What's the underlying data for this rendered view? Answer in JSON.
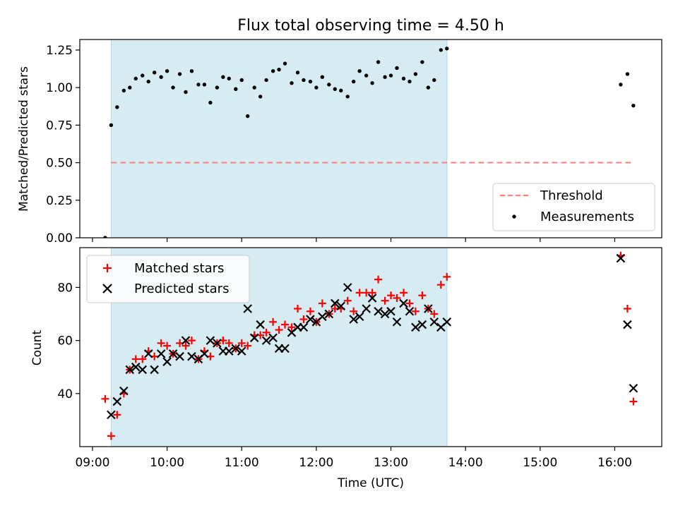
{
  "figure": {
    "title": "Flux total observing time = 4.50 h",
    "xlabel": "Time (UTC)",
    "x_ticks": [
      "09:00",
      "10:00",
      "11:00",
      "12:00",
      "13:00",
      "14:00",
      "15:00",
      "16:00"
    ],
    "x_tick_hours": [
      9,
      10,
      11,
      12,
      13,
      14,
      15,
      16
    ],
    "xlim_hours": [
      8.83,
      16.63
    ]
  },
  "colors": {
    "shade": "#add8e6",
    "threshold": "#ff7f7f",
    "measurement": "#000000",
    "matched": "#ff0000",
    "predicted": "#000000"
  },
  "chart_data": [
    {
      "type": "scatter",
      "ylabel": "Matched/Predicted stars",
      "ylim": [
        0,
        1.32
      ],
      "y_ticks": [
        0.0,
        0.25,
        0.5,
        0.75,
        1.0,
        1.25
      ],
      "y_tick_labels": [
        "0.00",
        "0.25",
        "0.50",
        "0.75",
        "1.00",
        "1.25"
      ],
      "legend": {
        "position": "lower-right",
        "entries": [
          "Threshold",
          "Measurements"
        ]
      },
      "shaded_span_hours": [
        9.25,
        13.75
      ],
      "threshold": {
        "name": "Threshold",
        "y": 0.5,
        "x_range_hours": [
          9.25,
          16.25
        ],
        "style": "dashed"
      },
      "series": [
        {
          "name": "Measurements",
          "x_hours": [
            9.17,
            9.25,
            9.33,
            9.42,
            9.5,
            9.58,
            9.67,
            9.75,
            9.83,
            9.92,
            10.0,
            10.08,
            10.17,
            10.25,
            10.33,
            10.42,
            10.5,
            10.58,
            10.67,
            10.75,
            10.83,
            10.92,
            11.0,
            11.08,
            11.17,
            11.25,
            11.33,
            11.42,
            11.5,
            11.58,
            11.67,
            11.75,
            11.83,
            11.92,
            12.0,
            12.08,
            12.17,
            12.25,
            12.33,
            12.42,
            12.5,
            12.58,
            12.67,
            12.75,
            12.83,
            12.92,
            13.0,
            13.08,
            13.17,
            13.25,
            13.33,
            13.42,
            13.5,
            13.58,
            13.67,
            13.75,
            16.08,
            16.17,
            16.25
          ],
          "y": [
            0.0,
            0.75,
            0.87,
            0.98,
            1.0,
            1.06,
            1.08,
            1.04,
            1.1,
            1.07,
            1.11,
            1.0,
            1.09,
            0.97,
            1.11,
            1.02,
            1.02,
            0.9,
            1.0,
            1.07,
            1.06,
            0.99,
            1.05,
            0.81,
            1.0,
            0.94,
            1.05,
            1.11,
            1.12,
            1.16,
            1.03,
            1.1,
            1.05,
            1.04,
            1.0,
            1.07,
            1.02,
            0.99,
            0.98,
            0.94,
            1.04,
            1.11,
            1.08,
            1.03,
            1.17,
            1.07,
            1.08,
            1.13,
            1.06,
            1.04,
            1.09,
            1.17,
            1.0,
            1.05,
            1.25,
            1.26,
            1.02,
            1.09,
            0.88
          ]
        }
      ]
    },
    {
      "type": "scatter",
      "ylabel": "Count",
      "ylim": [
        20,
        95
      ],
      "y_ticks": [
        40,
        60,
        80
      ],
      "y_tick_labels": [
        "40",
        "60",
        "80"
      ],
      "legend": {
        "position": "upper-left",
        "entries": [
          "Matched stars",
          "Predicted stars"
        ]
      },
      "shaded_span_hours": [
        9.25,
        13.75
      ],
      "series": [
        {
          "name": "Matched stars",
          "marker": "plus",
          "x_hours": [
            9.17,
            9.25,
            9.33,
            9.42,
            9.5,
            9.58,
            9.67,
            9.75,
            9.83,
            9.92,
            10.0,
            10.08,
            10.17,
            10.25,
            10.33,
            10.42,
            10.5,
            10.58,
            10.67,
            10.75,
            10.83,
            10.92,
            11.0,
            11.08,
            11.17,
            11.25,
            11.33,
            11.42,
            11.5,
            11.58,
            11.67,
            11.75,
            11.83,
            11.92,
            12.0,
            12.08,
            12.17,
            12.25,
            12.33,
            12.42,
            12.5,
            12.58,
            12.67,
            12.75,
            12.83,
            12.92,
            13.0,
            13.08,
            13.17,
            13.25,
            13.33,
            13.42,
            13.5,
            13.58,
            13.67,
            13.75,
            16.08,
            16.17,
            16.25
          ],
          "y": [
            38,
            24,
            32,
            40,
            49,
            53,
            53,
            56,
            54,
            59,
            58,
            55,
            59,
            58,
            60,
            53,
            56,
            54,
            59,
            60,
            59,
            57,
            59,
            58,
            62,
            62,
            63,
            67,
            64,
            66,
            65,
            72,
            68,
            71,
            67,
            74,
            70,
            72,
            72,
            75,
            71,
            78,
            78,
            78,
            83,
            75,
            77,
            76,
            78,
            74,
            71,
            77,
            72,
            70,
            81,
            84,
            92,
            72,
            37
          ]
        },
        {
          "name": "Predicted stars",
          "marker": "x",
          "x_hours": [
            9.25,
            9.33,
            9.42,
            9.5,
            9.58,
            9.67,
            9.75,
            9.83,
            9.92,
            10.0,
            10.08,
            10.17,
            10.25,
            10.33,
            10.42,
            10.5,
            10.58,
            10.67,
            10.75,
            10.83,
            10.92,
            11.0,
            11.08,
            11.17,
            11.25,
            11.33,
            11.42,
            11.5,
            11.58,
            11.67,
            11.75,
            11.83,
            11.92,
            12.0,
            12.08,
            12.17,
            12.25,
            12.33,
            12.42,
            12.5,
            12.58,
            12.67,
            12.75,
            12.83,
            12.92,
            13.0,
            13.08,
            13.17,
            13.25,
            13.33,
            13.42,
            13.5,
            13.58,
            13.67,
            13.75,
            16.08,
            16.17,
            16.25
          ],
          "y": [
            32,
            37,
            41,
            49,
            50,
            49,
            55,
            49,
            55,
            52,
            55,
            54,
            60,
            54,
            53,
            55,
            60,
            59,
            56,
            56,
            57,
            56,
            72,
            61,
            66,
            60,
            61,
            57,
            57,
            63,
            65,
            65,
            68,
            67,
            69,
            70,
            74,
            73,
            80,
            68,
            69,
            72,
            76,
            71,
            70,
            71,
            67,
            74,
            71,
            65,
            66,
            72,
            67,
            65,
            67,
            91,
            66,
            42
          ]
        }
      ]
    }
  ]
}
